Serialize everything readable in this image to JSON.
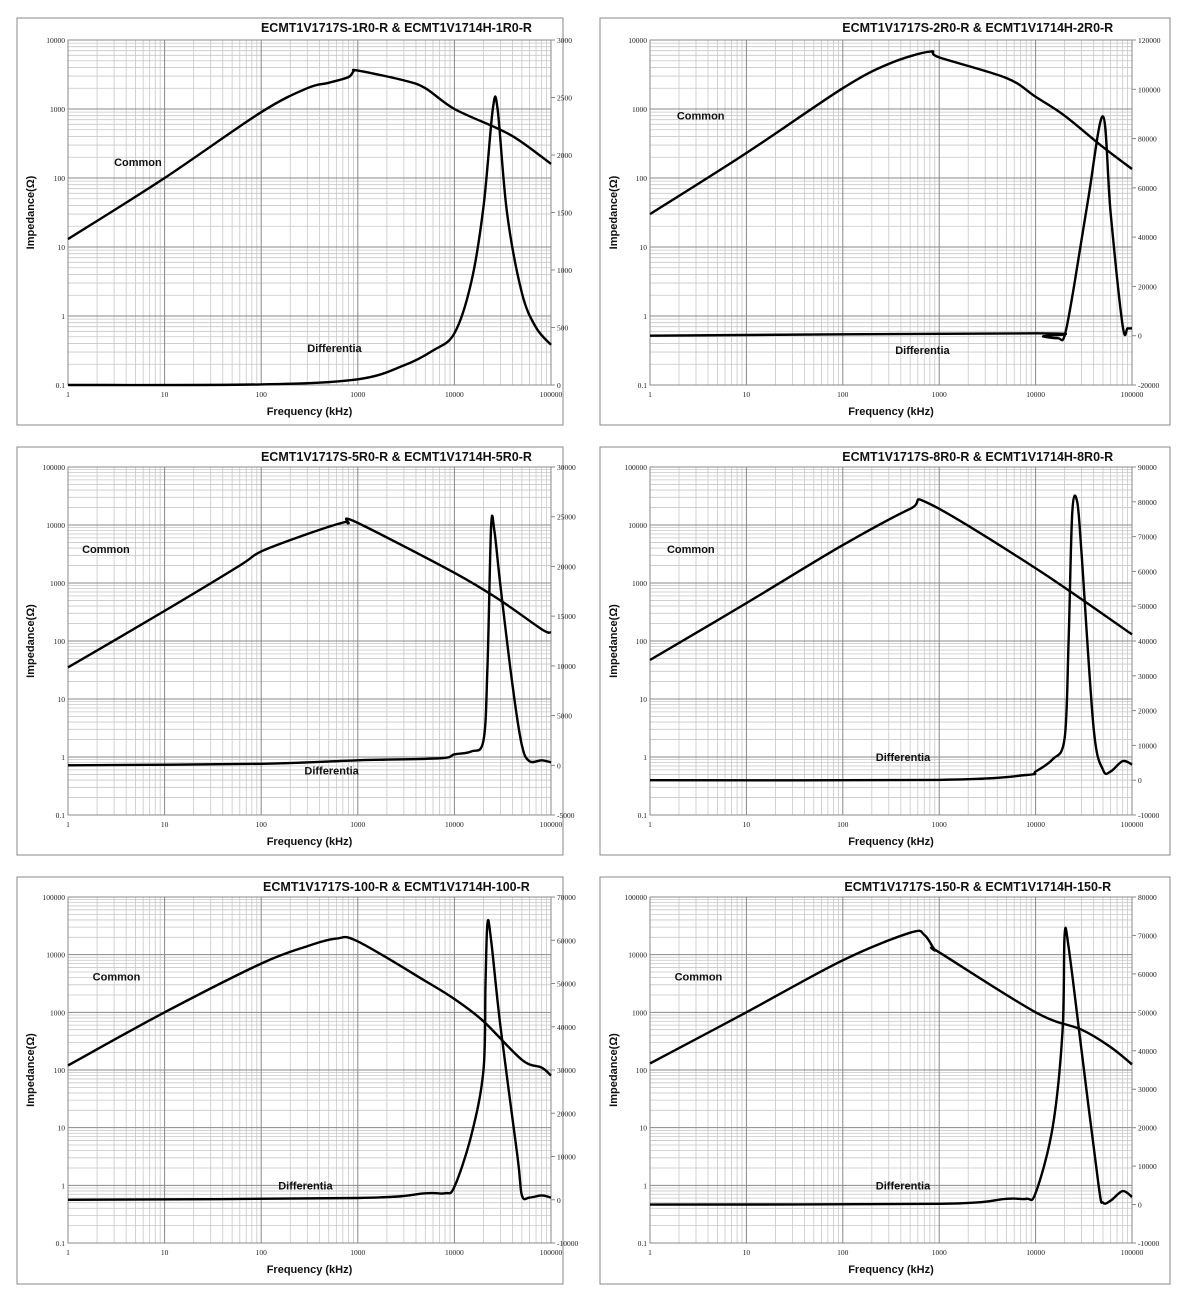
{
  "chart_data": [
    {
      "type": "line",
      "title": "ECMT1V1717S-1R0-R & ECMT1V1714H-1R0-R",
      "xlabel": "Frequency (kHz)",
      "ylabel": "Impedance(Ω)",
      "x_scale": "log",
      "xlim": [
        1,
        100000
      ],
      "y_scale": "log",
      "ylim": [
        0.1,
        10000
      ],
      "y2_scale": "linear",
      "y2lim": [
        0,
        3000
      ],
      "grid": true,
      "x_ticks": [
        "1",
        "10",
        "100",
        "1000",
        "10000",
        "100000"
      ],
      "y_ticks": [
        "0.1",
        "1",
        "10",
        "100",
        "1000",
        "10000"
      ],
      "y2_ticks": [
        "0",
        "500",
        "1000",
        "1500",
        "2000",
        "2500",
        "3000"
      ],
      "series": [
        {
          "name": "Common",
          "axis": "left",
          "x": [
            1,
            10,
            100,
            300,
            500,
            800,
            900,
            1000,
            3000,
            5000,
            10000,
            30000,
            50000,
            100000
          ],
          "y": [
            13,
            100,
            900,
            2000,
            2400,
            2900,
            3500,
            3600,
            2600,
            2000,
            1000,
            500,
            330,
            160
          ]
        },
        {
          "name": "Differentia",
          "axis": "right",
          "x": [
            1,
            100,
            1000,
            3000,
            6000,
            10000,
            15000,
            20000,
            25000,
            28000,
            35000,
            50000,
            70000,
            100000
          ],
          "y": [
            0,
            5,
            50,
            170,
            300,
            450,
            900,
            1550,
            2400,
            2400,
            1500,
            800,
            500,
            350
          ]
        }
      ]
    },
    {
      "type": "line",
      "title": "ECMT1V1717S-2R0-R & ECMT1V1714H-2R0-R",
      "xlabel": "Frequency (kHz)",
      "ylabel": "Impedance(Ω)",
      "x_scale": "log",
      "xlim": [
        1,
        100000
      ],
      "y_scale": "log",
      "ylim": [
        0.1,
        10000
      ],
      "y2_scale": "linear",
      "y2lim": [
        -20000,
        120000
      ],
      "grid": true,
      "x_ticks": [
        "1",
        "10",
        "100",
        "1000",
        "10000",
        "100000"
      ],
      "y_ticks": [
        "0.1",
        "1",
        "10",
        "100",
        "1000",
        "10000"
      ],
      "y2_ticks": [
        "-20000",
        "0",
        "20000",
        "40000",
        "60000",
        "80000",
        "100000",
        "120000"
      ],
      "series": [
        {
          "name": "Common",
          "axis": "left",
          "x": [
            1,
            10,
            100,
            300,
            800,
            1000,
            5000,
            10000,
            20000,
            50000,
            100000
          ],
          "y": [
            30,
            230,
            2000,
            4500,
            6800,
            5600,
            2800,
            1500,
            800,
            280,
            135
          ]
        },
        {
          "name": "Differentia",
          "axis": "right",
          "x": [
            1,
            10000,
            12000,
            17000,
            20000,
            25000,
            35000,
            50000,
            60000,
            80000,
            90000,
            100000
          ],
          "y": [
            0,
            1000,
            -300,
            -1000,
            0,
            20000,
            55000,
            89000,
            50000,
            4000,
            3000,
            3000
          ]
        }
      ]
    },
    {
      "type": "line",
      "title": "ECMT1V1717S-5R0-R & ECMT1V1714H-5R0-R",
      "xlabel": "Frequency (kHz)",
      "ylabel": "Impedance(Ω)",
      "x_scale": "log",
      "xlim": [
        1,
        100000
      ],
      "y_scale": "log",
      "ylim": [
        0.1,
        100000
      ],
      "y2_scale": "linear",
      "y2lim": [
        -5000,
        30000
      ],
      "grid": true,
      "x_ticks": [
        "1",
        "10",
        "100",
        "1000",
        "10000",
        "100000"
      ],
      "y_ticks": [
        "0.1",
        "1",
        "10",
        "100",
        "1000",
        "10000",
        "100000"
      ],
      "y2_ticks": [
        "-5000",
        "0",
        "5000",
        "10000",
        "15000",
        "20000",
        "25000",
        "30000"
      ],
      "series": [
        {
          "name": "Common",
          "axis": "left",
          "x": [
            1,
            10,
            60,
            100,
            300,
            700,
            800,
            950,
            10000,
            30000,
            80000,
            100000
          ],
          "y": [
            35,
            330,
            2000,
            3500,
            7000,
            11000,
            10700,
            11300,
            1500,
            500,
            160,
            140
          ]
        },
        {
          "name": "Differentia",
          "axis": "right",
          "x": [
            1,
            100,
            1000,
            7000,
            10000,
            15000,
            20000,
            22000,
            24000,
            26000,
            30000,
            40000,
            50000,
            60000,
            80000,
            100000
          ],
          "y": [
            0,
            150,
            500,
            700,
            1100,
            1400,
            2500,
            10000,
            24000,
            23500,
            18000,
            8000,
            2000,
            400,
            500,
            300
          ]
        }
      ]
    },
    {
      "type": "line",
      "title": "ECMT1V1717S-8R0-R & ECMT1V1714H-8R0-R",
      "xlabel": "Frequency (kHz)",
      "ylabel": "Impedance(Ω)",
      "x_scale": "log",
      "xlim": [
        1,
        100000
      ],
      "y_scale": "log",
      "ylim": [
        0.1,
        100000
      ],
      "y2_scale": "linear",
      "y2lim": [
        -10000,
        90000
      ],
      "grid": true,
      "x_ticks": [
        "1",
        "10",
        "100",
        "1000",
        "10000",
        "100000"
      ],
      "y_ticks": [
        "0.1",
        "1",
        "10",
        "100",
        "1000",
        "10000",
        "100000"
      ],
      "y2_ticks": [
        "-10000",
        "0",
        "10000",
        "20000",
        "30000",
        "40000",
        "50000",
        "60000",
        "70000",
        "80000",
        "90000"
      ],
      "series": [
        {
          "name": "Common",
          "axis": "left",
          "x": [
            1,
            10,
            100,
            500,
            800,
            10000,
            100000
          ],
          "y": [
            47,
            450,
            4500,
            19000,
            23000,
            1800,
            130
          ]
        },
        {
          "name": "Differentia",
          "axis": "right",
          "x": [
            1,
            1000,
            8000,
            10000,
            15000,
            20000,
            22000,
            24000,
            27000,
            30000,
            40000,
            50000,
            60000,
            80000,
            100000
          ],
          "y": [
            0,
            100,
            1500,
            2500,
            6000,
            12000,
            40000,
            77000,
            80000,
            65000,
            15000,
            3000,
            2500,
            5500,
            4500
          ]
        }
      ]
    },
    {
      "type": "line",
      "title": "ECMT1V1717S-100-R & ECMT1V1714H-100-R",
      "xlabel": "Frequency (kHz)",
      "ylabel": "Impedance(Ω)",
      "x_scale": "log",
      "xlim": [
        1,
        100000
      ],
      "y_scale": "log",
      "ylim": [
        0.1,
        100000
      ],
      "y2_scale": "linear",
      "y2lim": [
        -10000,
        70000
      ],
      "grid": true,
      "x_ticks": [
        "1",
        "10",
        "100",
        "1000",
        "10000",
        "100000"
      ],
      "y_ticks": [
        "0.1",
        "1",
        "10",
        "100",
        "1000",
        "10000",
        "100000"
      ],
      "y2_ticks": [
        "-10000",
        "0",
        "10000",
        "20000",
        "30000",
        "40000",
        "50000",
        "60000",
        "70000"
      ],
      "series": [
        {
          "name": "Common",
          "axis": "left",
          "x": [
            1,
            10,
            100,
            300,
            600,
            1000,
            5000,
            10000,
            20000,
            50000,
            80000,
            100000
          ],
          "y": [
            120,
            1000,
            7000,
            14000,
            19000,
            17000,
            3500,
            1700,
            700,
            150,
            110,
            80
          ]
        },
        {
          "name": "Differentia",
          "axis": "right",
          "x": [
            1,
            1000,
            5000,
            8000,
            10000,
            15000,
            20000,
            21000,
            22000,
            24000,
            30000,
            45000,
            50000,
            60000,
            80000,
            100000
          ],
          "y": [
            0,
            400,
            1500,
            1500,
            3000,
            15000,
            30000,
            50000,
            64000,
            60000,
            40000,
            10000,
            1000,
            500,
            1000,
            500
          ]
        }
      ]
    },
    {
      "type": "line",
      "title": "ECMT1V1717S-150-R & ECMT1V1714H-150-R",
      "xlabel": "Frequency (kHz)",
      "ylabel": "Impedance(Ω)",
      "x_scale": "log",
      "xlim": [
        1,
        100000
      ],
      "y_scale": "log",
      "ylim": [
        0.1,
        100000
      ],
      "y2_scale": "linear",
      "y2lim": [
        -10000,
        80000
      ],
      "grid": true,
      "x_ticks": [
        "1",
        "10",
        "100",
        "1000",
        "10000",
        "100000"
      ],
      "y_ticks": [
        "0.1",
        "1",
        "10",
        "100",
        "1000",
        "10000",
        "100000"
      ],
      "y2_ticks": [
        "-10000",
        "0",
        "10000",
        "20000",
        "30000",
        "40000",
        "50000",
        "60000",
        "70000",
        "80000"
      ],
      "series": [
        {
          "name": "Common",
          "axis": "left",
          "x": [
            1,
            10,
            100,
            500,
            700,
            900,
            1000,
            10000,
            30000,
            60000,
            100000
          ],
          "y": [
            130,
            1000,
            8000,
            24000,
            22000,
            12000,
            11000,
            1000,
            500,
            250,
            125
          ]
        },
        {
          "name": "Differentia",
          "axis": "right",
          "x": [
            1,
            1000,
            5000,
            8000,
            10000,
            15000,
            19000,
            20000,
            22000,
            30000,
            45000,
            50000,
            60000,
            80000,
            100000
          ],
          "y": [
            0,
            200,
            1500,
            1500,
            3000,
            20000,
            45000,
            70000,
            67000,
            40000,
            5000,
            500,
            1000,
            3500,
            2000
          ]
        }
      ]
    }
  ]
}
